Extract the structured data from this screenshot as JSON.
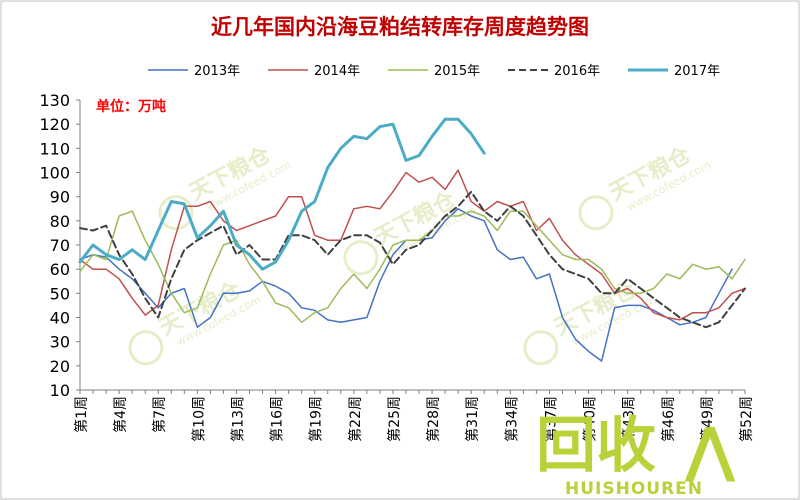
{
  "chart_data": {
    "type": "line",
    "title": "近几年国内沿海豆粕结转库存周度趋势图",
    "unit_label": "单位：万吨",
    "xlabel": "",
    "ylabel": "",
    "ylim": [
      10,
      130
    ],
    "yticks": [
      10,
      20,
      30,
      40,
      50,
      60,
      70,
      80,
      90,
      100,
      110,
      120,
      130
    ],
    "x": [
      1,
      2,
      3,
      4,
      5,
      6,
      7,
      8,
      9,
      10,
      11,
      12,
      13,
      14,
      15,
      16,
      17,
      18,
      19,
      20,
      21,
      22,
      23,
      24,
      25,
      26,
      27,
      28,
      29,
      30,
      31,
      32,
      33,
      34,
      35,
      36,
      37,
      38,
      39,
      40,
      41,
      42,
      43,
      44,
      45,
      46,
      47,
      48,
      49,
      50,
      51,
      52
    ],
    "xtick_labels": [
      "第1周",
      "第4周",
      "第7周",
      "第10周",
      "第13周",
      "第16周",
      "第19周",
      "第22周",
      "第25周",
      "第28周",
      "第31周",
      "第34周",
      "第37周",
      "第40周",
      "第43周",
      "第46周",
      "第49周",
      "第52周"
    ],
    "legend_position": "top",
    "grid": false,
    "series": [
      {
        "name": "2013年",
        "color": "#4472c4",
        "dash": false,
        "width": 1.5,
        "values": [
          64,
          66,
          65,
          60,
          56,
          50,
          44,
          50,
          52,
          36,
          40,
          50,
          50,
          51,
          55,
          53,
          50,
          44,
          43,
          39,
          38,
          39,
          40,
          55,
          66,
          72,
          72,
          73,
          80,
          85,
          82,
          80,
          68,
          64,
          65,
          56,
          58,
          40,
          31,
          26,
          22,
          44,
          45,
          45,
          43,
          40,
          37,
          38,
          40,
          50,
          60,
          null
        ]
      },
      {
        "name": "2014年",
        "color": "#c0504d",
        "dash": false,
        "width": 1.5,
        "values": [
          64,
          60,
          60,
          56,
          48,
          41,
          45,
          68,
          86,
          86,
          88,
          80,
          76,
          78,
          80,
          82,
          90,
          90,
          74,
          72,
          72,
          85,
          86,
          85,
          92,
          100,
          96,
          98,
          93,
          101,
          88,
          84,
          88,
          86,
          88,
          76,
          81,
          72,
          66,
          62,
          58,
          50,
          52,
          48,
          42,
          40,
          39,
          42,
          42,
          44,
          50,
          52
        ]
      },
      {
        "name": "2015年",
        "color": "#9bbb59",
        "dash": false,
        "width": 1.5,
        "values": [
          59,
          66,
          64,
          82,
          84,
          72,
          62,
          50,
          42,
          44,
          58,
          70,
          72,
          62,
          55,
          46,
          44,
          38,
          42,
          44,
          52,
          58,
          52,
          60,
          70,
          72,
          72,
          76,
          82,
          82,
          84,
          82,
          76,
          84,
          84,
          78,
          72,
          66,
          64,
          64,
          60,
          52,
          50,
          50,
          52,
          58,
          56,
          62,
          60,
          61,
          56,
          64
        ]
      },
      {
        "name": "2016年",
        "color": "#404040",
        "dash": true,
        "width": 2,
        "values": [
          77,
          76,
          78,
          66,
          58,
          48,
          40,
          56,
          68,
          72,
          75,
          78,
          66,
          70,
          64,
          64,
          74,
          74,
          72,
          66,
          72,
          74,
          74,
          71,
          62,
          68,
          70,
          76,
          82,
          86,
          92,
          84,
          80,
          86,
          82,
          74,
          66,
          60,
          58,
          56,
          50,
          50,
          56,
          52,
          48,
          44,
          40,
          38,
          36,
          38,
          45,
          52
        ]
      },
      {
        "name": "2017年",
        "color": "#4bacc6",
        "dash": false,
        "width": 3,
        "values": [
          63,
          70,
          66,
          64,
          68,
          64,
          76,
          88,
          87,
          73,
          78,
          84,
          70,
          66,
          60,
          63,
          72,
          84,
          88,
          102,
          110,
          115,
          114,
          119,
          120,
          105,
          107,
          115,
          122,
          122,
          116,
          108,
          null,
          null,
          null,
          null,
          null,
          null,
          null,
          null,
          null,
          null,
          null,
          null,
          null,
          null,
          null,
          null,
          null,
          null,
          null,
          null
        ]
      }
    ]
  },
  "watermark": {
    "brand_cn": "天下粮仓",
    "brand_url": "www.cofeed.com",
    "corner_logo_text": "回收",
    "corner_logo_sub": "HUISHOUREN"
  }
}
